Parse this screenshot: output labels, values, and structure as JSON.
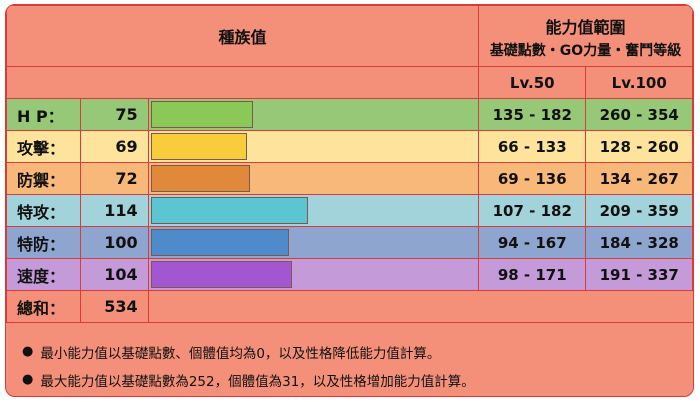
{
  "header": {
    "base_stats_title": "種族值",
    "range_title": "能力值範圍",
    "range_subtitle": "基礎點數・GO力量・奮鬥等級",
    "lv50_label": "Lv.50",
    "lv100_label": "Lv.100"
  },
  "stats": [
    {
      "label": "H P：",
      "value": "75",
      "percent": 32,
      "lv50": "135 - 182",
      "lv100": "260 - 354",
      "row_color": "#97c877",
      "bar_color": "#8cc858"
    },
    {
      "label": "攻擊：",
      "value": "69",
      "percent": 30,
      "lv50": "66 - 133",
      "lv100": "128 - 260",
      "row_color": "#fde39b",
      "bar_color": "#f8cc3a"
    },
    {
      "label": "防禦：",
      "value": "72",
      "percent": 31,
      "lv50": "69 - 136",
      "lv100": "134 - 267",
      "row_color": "#f7b87a",
      "bar_color": "#e0893a"
    },
    {
      "label": "特攻：",
      "value": "114",
      "percent": 49,
      "lv50": "107 - 182",
      "lv100": "209 - 359",
      "row_color": "#a2d2da",
      "bar_color": "#5bc6d2"
    },
    {
      "label": "特防：",
      "value": "100",
      "percent": 43,
      "lv50": "94 - 167",
      "lv100": "184 - 328",
      "row_color": "#8ea5cf",
      "bar_color": "#4f8acb"
    },
    {
      "label": "速度：",
      "value": "104",
      "percent": 44,
      "lv50": "98 - 171",
      "lv100": "191 - 337",
      "row_color": "#c49ad9",
      "bar_color": "#a256cf"
    }
  ],
  "total": {
    "label": "總和：",
    "value": "534"
  },
  "notes": [
    "最小能力值以基礎點數、個體值均為0，以及性格降低能力值計算。",
    "最大能力值以基礎點數為252，個體值為31，以及性格增加能力值計算。"
  ]
}
